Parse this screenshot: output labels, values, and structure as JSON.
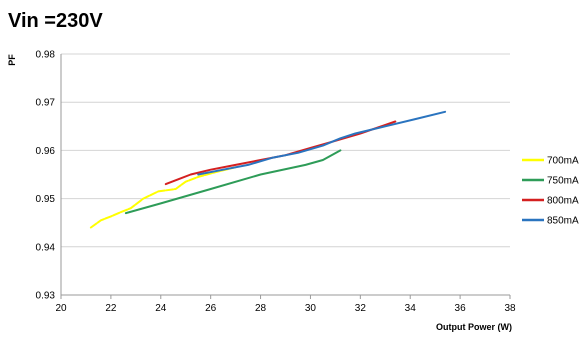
{
  "chart_data": {
    "type": "line",
    "title": "Vin =230V",
    "xlabel": "Output Power (W)",
    "ylabel": "PF",
    "xlim": [
      20,
      38
    ],
    "ylim": [
      0.93,
      0.98
    ],
    "xticks": [
      "20",
      "22",
      "24",
      "26",
      "28",
      "30",
      "32",
      "34",
      "36",
      "38"
    ],
    "yticks": [
      "0.93",
      "0.94",
      "0.95",
      "0.96",
      "0.97",
      "0.98"
    ],
    "grid": "horizontal",
    "legend_position": "right",
    "series": [
      {
        "name": "700mA",
        "color": "#ffff00",
        "dashed": true,
        "x": [
          21.2,
          21.6,
          22.0,
          22.4,
          22.8,
          23.3,
          23.9,
          24.6,
          25.0,
          25.5,
          26.2,
          27.0
        ],
        "y": [
          0.944,
          0.9455,
          0.9463,
          0.9472,
          0.948,
          0.95,
          0.9515,
          0.952,
          0.9535,
          0.9545,
          0.9555,
          0.9565
        ]
      },
      {
        "name": "750mA",
        "color": "#2e9c58",
        "dashed": false,
        "x": [
          22.6,
          24.0,
          26.0,
          28.0,
          29.8,
          30.5,
          31.2
        ],
        "y": [
          0.947,
          0.949,
          0.952,
          0.955,
          0.957,
          0.958,
          0.96
        ]
      },
      {
        "name": "800mA",
        "color": "#d42020",
        "dashed": false,
        "x": [
          24.2,
          24.7,
          25.2,
          26.0,
          27.0,
          28.0,
          29.0,
          30.0,
          31.0,
          32.0,
          33.4
        ],
        "y": [
          0.953,
          0.954,
          0.955,
          0.956,
          0.957,
          0.958,
          0.959,
          0.9605,
          0.962,
          0.9635,
          0.966
        ]
      },
      {
        "name": "850mA",
        "color": "#2a74bf",
        "dashed": false,
        "x": [
          25.5,
          26.5,
          27.5,
          28.5,
          29.5,
          30.5,
          31.2,
          31.8,
          33.0,
          34.2,
          35.4
        ],
        "y": [
          0.955,
          0.956,
          0.957,
          0.9585,
          0.9595,
          0.961,
          0.9625,
          0.9635,
          0.965,
          0.9665,
          0.968
        ]
      }
    ]
  }
}
